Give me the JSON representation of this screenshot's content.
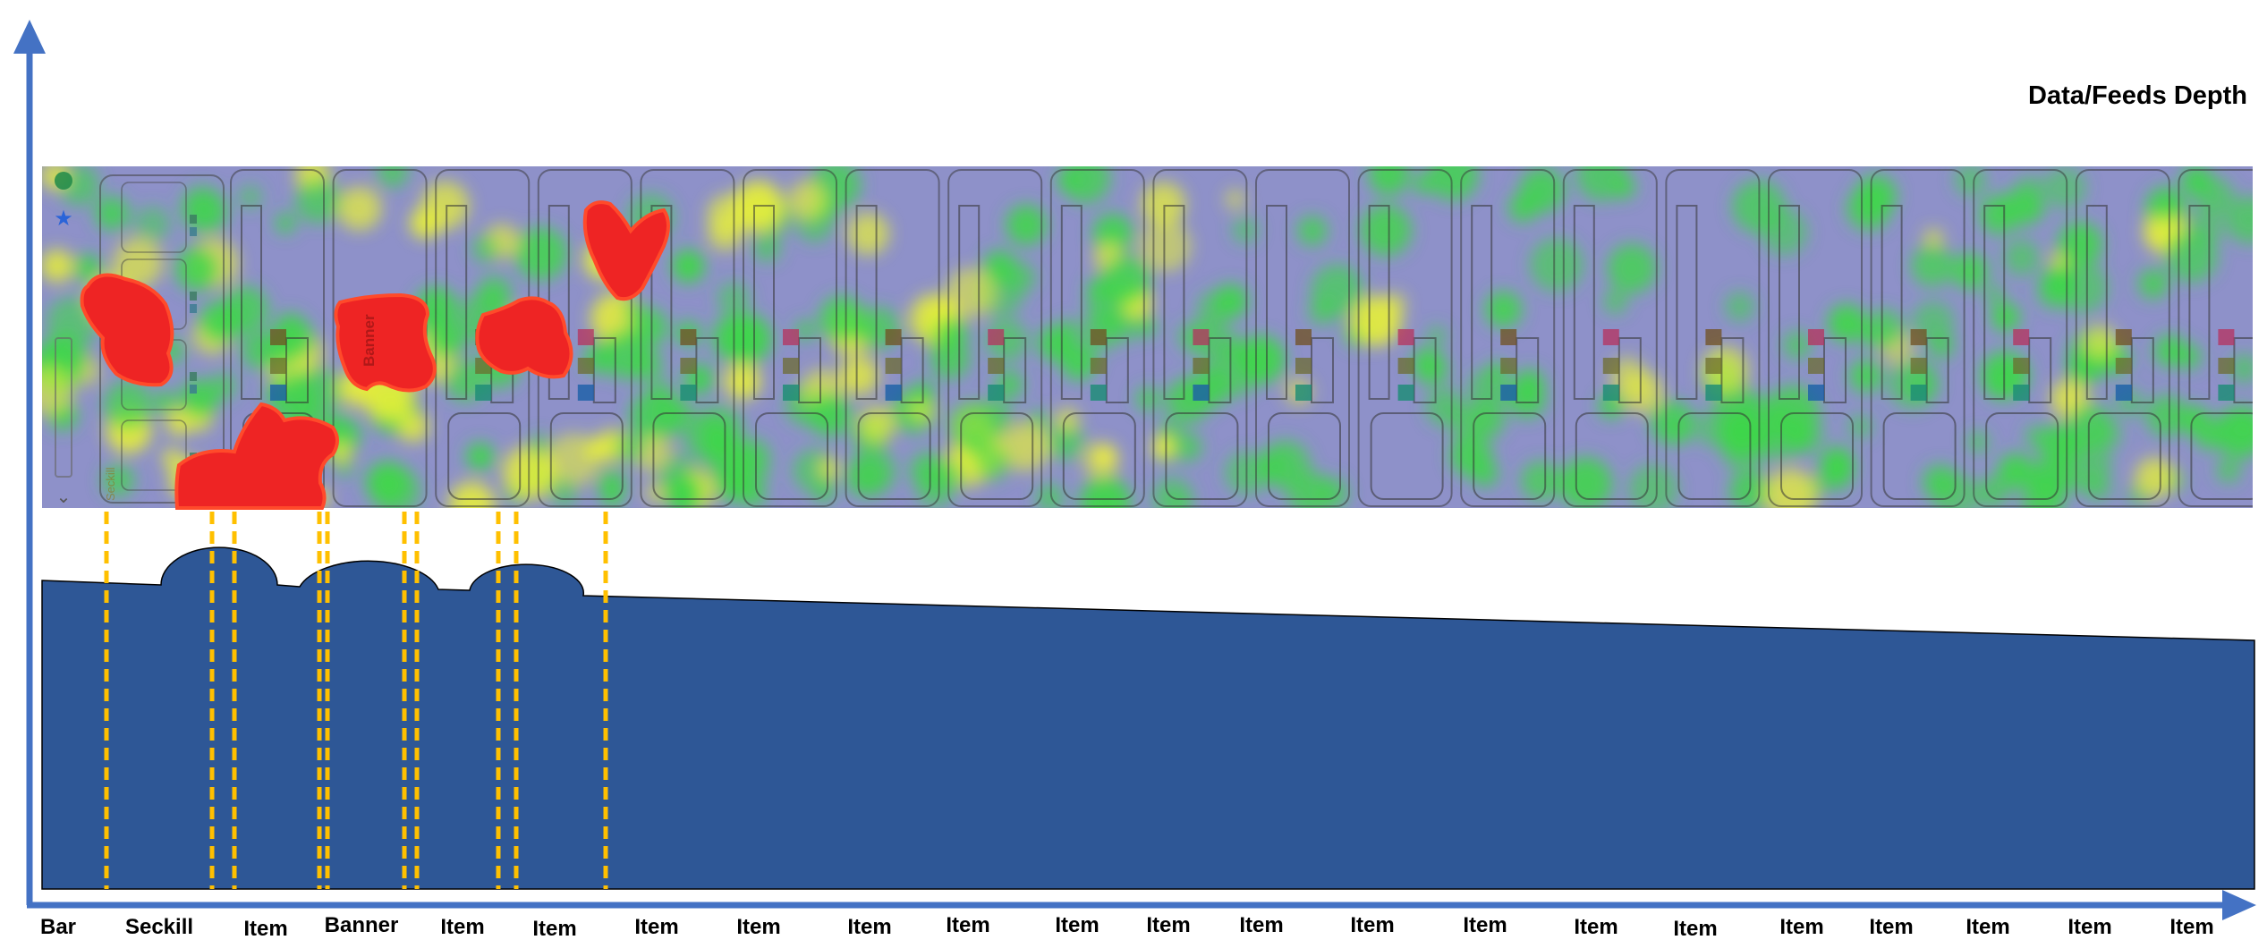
{
  "title": "Data/Feeds Depth",
  "heatmap": {
    "banner_text": "Banner",
    "seckill_text": "Seckill"
  },
  "x_axis_labels": [
    "Bar",
    "Seckill",
    "Item",
    "Banner",
    "Item",
    "Item",
    "Item",
    "Item",
    "Item",
    "Item",
    "Item",
    "Item",
    "Item",
    "Item",
    "Item",
    "Item",
    "Item",
    "Item",
    "Item",
    "Item",
    "Item",
    "Item"
  ],
  "colors": {
    "axis": "#4472c4",
    "area_fill": "#2e5796",
    "guide_line": "#ffc000",
    "hotspot": "#ee2424",
    "heat_green": "#3fd64a",
    "heat_yellow": "#e6ee3a",
    "heat_base": "#8e91c9"
  }
}
